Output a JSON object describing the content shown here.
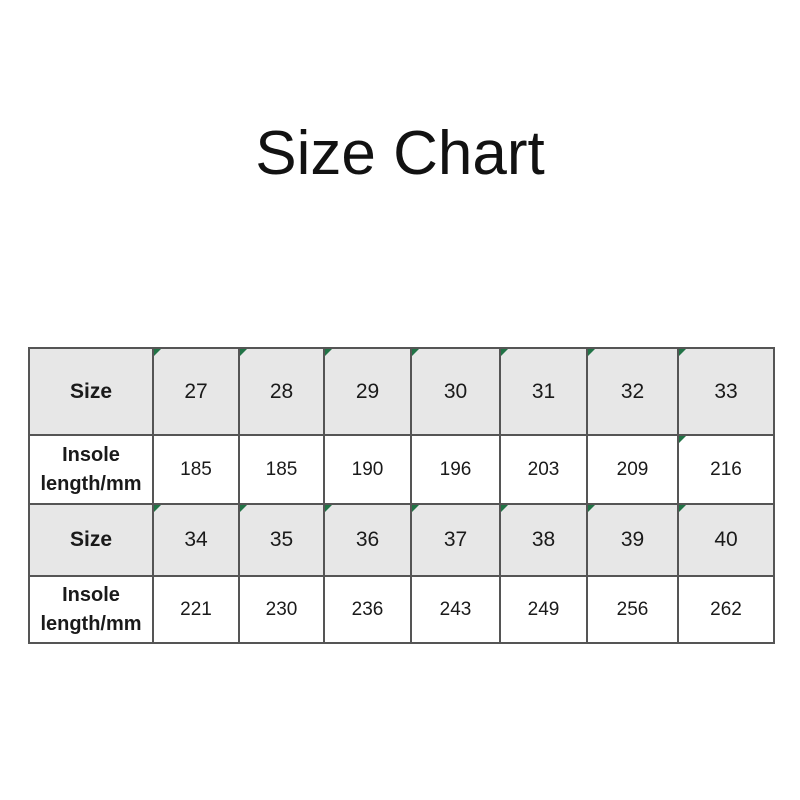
{
  "chart_data": {
    "type": "table",
    "title": "Size Chart",
    "rows": [
      {
        "label": "Size",
        "style": "header",
        "values": [
          "27",
          "28",
          "29",
          "30",
          "31",
          "32",
          "33"
        ],
        "text_markers": [
          true,
          true,
          true,
          true,
          true,
          true,
          true
        ]
      },
      {
        "label": "Insole length/mm",
        "style": "data",
        "values": [
          "185",
          "185",
          "190",
          "196",
          "203",
          "209",
          "216"
        ],
        "text_markers": [
          false,
          false,
          false,
          false,
          false,
          false,
          true
        ]
      },
      {
        "label": "Size",
        "style": "header",
        "values": [
          "34",
          "35",
          "36",
          "37",
          "38",
          "39",
          "40"
        ],
        "text_markers": [
          true,
          true,
          true,
          true,
          true,
          true,
          true
        ]
      },
      {
        "label": "Insole length/mm",
        "style": "data",
        "values": [
          "221",
          "230",
          "236",
          "243",
          "249",
          "256",
          "262"
        ],
        "text_markers": [
          false,
          false,
          false,
          false,
          false,
          false,
          false
        ]
      }
    ],
    "layout": {
      "legend": "none",
      "grid": "full-borders"
    }
  },
  "colors": {
    "header_row_bg": "#e7e7e7",
    "data_row_bg": "#ffffff",
    "inner_border": "#555555",
    "outer_border": "#3b3b3b",
    "text": "#1a1a1a",
    "title_text": "#121212",
    "stored_as_text_triangle": "#217346"
  },
  "icons": {
    "corner_marker": "number-stored-as-text-triangle"
  }
}
